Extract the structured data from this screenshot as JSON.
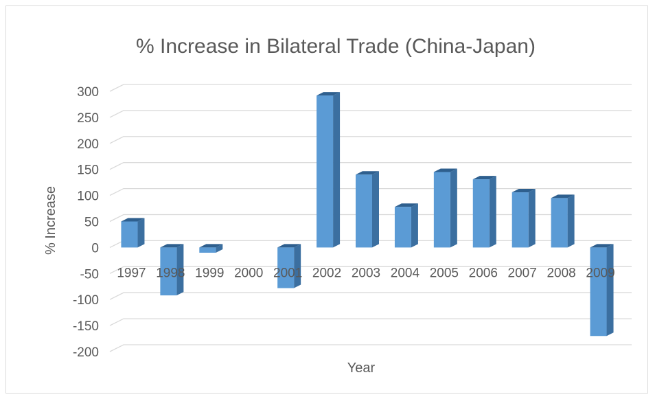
{
  "chart_data": {
    "type": "bar",
    "title": "% Increase in Bilateral Trade (China-Japan)",
    "xlabel": "Year",
    "ylabel": "% Increase",
    "categories": [
      "1997",
      "1998",
      "1999",
      "2000",
      "2001",
      "2002",
      "2003",
      "2004",
      "2005",
      "2006",
      "2007",
      "2008",
      "2009"
    ],
    "series": [
      {
        "values": [
          50,
          -92,
          -10,
          0,
          -78,
          292,
          140,
          78,
          145,
          131,
          106,
          95,
          -170
        ]
      }
    ],
    "yticks": [
      "300",
      "250",
      "200",
      "150",
      "100",
      "50",
      "0",
      "-50",
      "-100",
      "-150",
      "-200"
    ],
    "ylim": [
      -200,
      300
    ],
    "grid": true,
    "legend": "none",
    "colors": {
      "bar_front": "#5b9bd5",
      "bar_side": "#3b6fa0",
      "bar_top": "#2e5f8e",
      "grid": "#d9d9d9",
      "text": "#595959"
    }
  }
}
